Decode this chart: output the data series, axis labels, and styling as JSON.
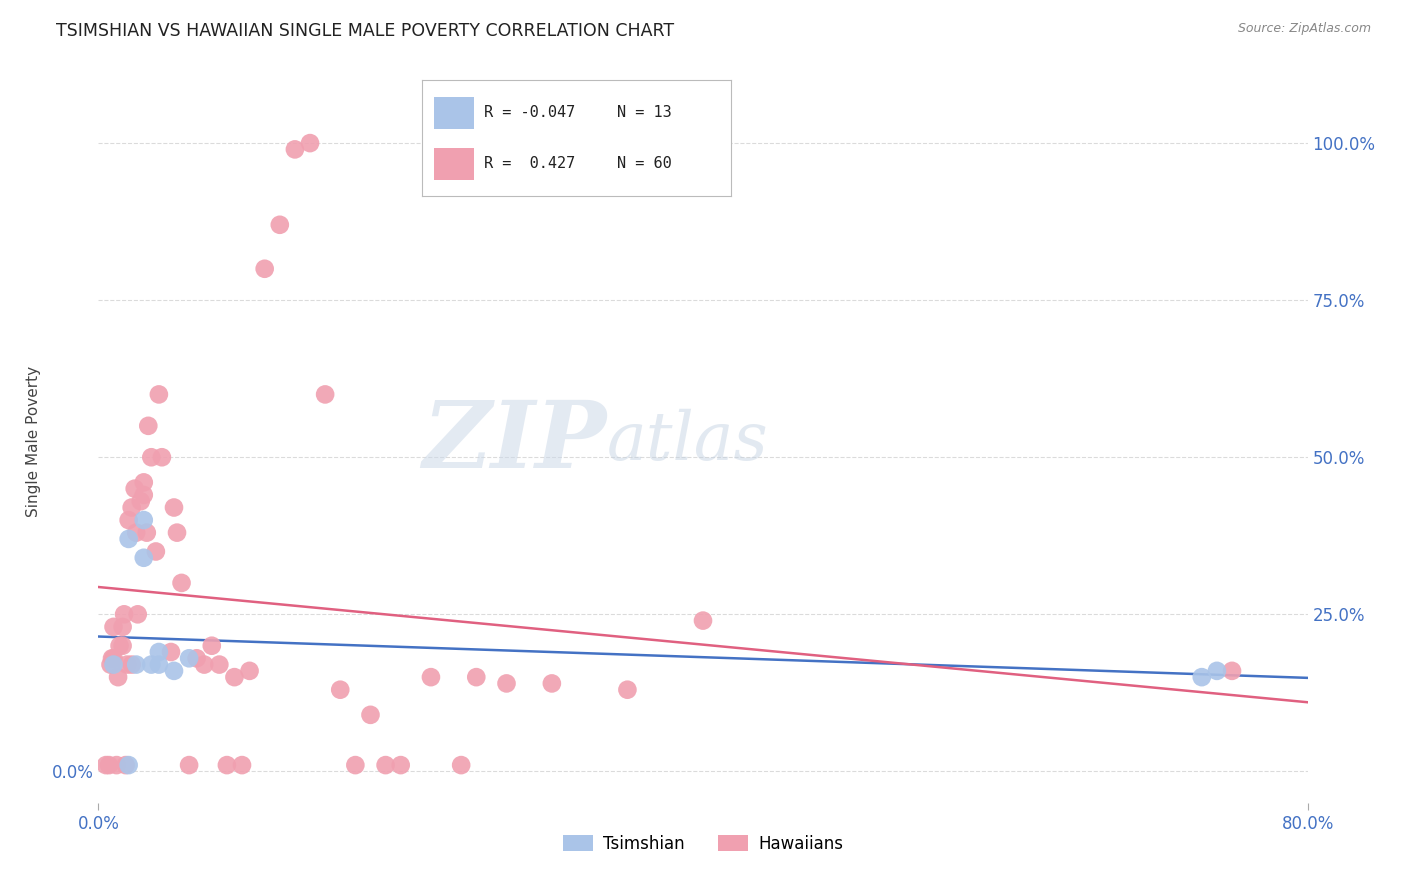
{
  "title": "TSIMSHIAN VS HAWAIIAN SINGLE MALE POVERTY CORRELATION CHART",
  "source": "Source: ZipAtlas.com",
  "ylabel": "Single Male Poverty",
  "background_color": "#ffffff",
  "grid_color": "#cccccc",
  "watermark_zip": "ZIP",
  "watermark_atlas": "atlas",
  "legend_R_tsimshian": "-0.047",
  "legend_N_tsimshian": "13",
  "legend_R_hawaiian": "0.427",
  "legend_N_hawaiian": "60",
  "tsimshian_color": "#aac4e8",
  "hawaiian_color": "#f0a0b0",
  "tsimshian_line_color": "#4472c4",
  "hawaiian_line_color": "#e06080",
  "tsimshian_x": [
    0.01,
    0.02,
    0.02,
    0.025,
    0.03,
    0.03,
    0.04,
    0.04,
    0.05,
    0.06,
    0.73,
    0.74,
    0.035
  ],
  "tsimshian_y": [
    0.17,
    0.37,
    0.01,
    0.17,
    0.4,
    0.34,
    0.17,
    0.19,
    0.16,
    0.18,
    0.15,
    0.16,
    0.17
  ],
  "hawaiian_x": [
    0.005,
    0.007,
    0.008,
    0.009,
    0.01,
    0.01,
    0.012,
    0.013,
    0.014,
    0.016,
    0.016,
    0.017,
    0.018,
    0.019,
    0.02,
    0.022,
    0.022,
    0.024,
    0.025,
    0.026,
    0.028,
    0.03,
    0.03,
    0.032,
    0.033,
    0.035,
    0.038,
    0.04,
    0.042,
    0.048,
    0.05,
    0.052,
    0.055,
    0.06,
    0.065,
    0.07,
    0.075,
    0.08,
    0.085,
    0.09,
    0.095,
    0.1,
    0.11,
    0.12,
    0.13,
    0.14,
    0.15,
    0.16,
    0.17,
    0.18,
    0.19,
    0.2,
    0.22,
    0.24,
    0.25,
    0.27,
    0.3,
    0.35,
    0.4,
    0.75
  ],
  "hawaiian_y": [
    0.01,
    0.01,
    0.17,
    0.18,
    0.18,
    0.23,
    0.01,
    0.15,
    0.2,
    0.2,
    0.23,
    0.25,
    0.01,
    0.17,
    0.4,
    0.17,
    0.42,
    0.45,
    0.38,
    0.25,
    0.43,
    0.44,
    0.46,
    0.38,
    0.55,
    0.5,
    0.35,
    0.6,
    0.5,
    0.19,
    0.42,
    0.38,
    0.3,
    0.01,
    0.18,
    0.17,
    0.2,
    0.17,
    0.01,
    0.15,
    0.01,
    0.16,
    0.8,
    0.87,
    0.99,
    1.0,
    0.6,
    0.13,
    0.01,
    0.09,
    0.01,
    0.01,
    0.15,
    0.01,
    0.15,
    0.14,
    0.14,
    0.13,
    0.24,
    0.16
  ],
  "xlim": [
    0.0,
    0.8
  ],
  "ylim": [
    -0.05,
    1.1
  ],
  "xticks": [
    0.0,
    0.8
  ],
  "xtick_labels": [
    "0.0%",
    "80.0%"
  ],
  "yticks_left": [
    0.0
  ],
  "yticks_left_labels": [
    "0.0%"
  ],
  "yticks_right": [
    0.25,
    0.5,
    0.75,
    1.0
  ],
  "yticks_right_labels": [
    "25.0%",
    "50.0%",
    "75.0%",
    "100.0%"
  ],
  "grid_yticks": [
    0.0,
    0.25,
    0.5,
    0.75,
    1.0
  ]
}
